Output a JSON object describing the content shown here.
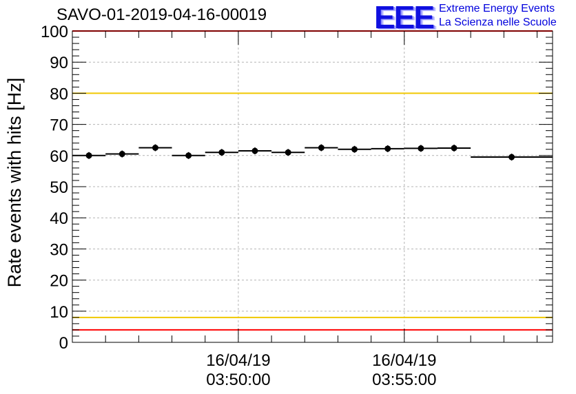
{
  "header": {
    "run_title": "SAVO-01-2019-04-16-00019",
    "logo_text": "EEE",
    "logo_line1": "Extreme Energy Events",
    "logo_line2": "La Scienza nelle Scuole"
  },
  "colors": {
    "red_limit": "#ff0000",
    "yellow_limit": "#f0c800",
    "marker": "#000000",
    "logo": "#1010e0"
  },
  "chart_data": {
    "type": "scatter",
    "title": "SAVO-01-2019-04-16-00019",
    "ylabel": "Rate events with hits [Hz]",
    "xlabel": "",
    "ylim": [
      0,
      100
    ],
    "yticks": [
      0,
      10,
      20,
      30,
      40,
      50,
      60,
      70,
      80,
      90,
      100
    ],
    "xlim_seconds": [
      0,
      868
    ],
    "xticks": [
      {
        "t": 300,
        "date": "16/04/19",
        "time": "03:50:00"
      },
      {
        "t": 600,
        "date": "16/04/19",
        "time": "03:55:00"
      }
    ],
    "grid": true,
    "reference_lines": [
      {
        "name": "red-upper",
        "value": 100,
        "color": "red"
      },
      {
        "name": "yellow-upper",
        "value": 80,
        "color": "yellow"
      },
      {
        "name": "yellow-lower",
        "value": 8,
        "color": "yellow"
      },
      {
        "name": "red-lower",
        "value": 4,
        "color": "red"
      }
    ],
    "series": [
      {
        "name": "rate",
        "points": [
          {
            "x_start": 0,
            "x_end": 60,
            "y": 60.0
          },
          {
            "x_start": 60,
            "x_end": 120,
            "y": 60.5
          },
          {
            "x_start": 120,
            "x_end": 180,
            "y": 62.5
          },
          {
            "x_start": 180,
            "x_end": 240,
            "y": 60.0
          },
          {
            "x_start": 240,
            "x_end": 300,
            "y": 61.0
          },
          {
            "x_start": 300,
            "x_end": 360,
            "y": 61.5
          },
          {
            "x_start": 360,
            "x_end": 420,
            "y": 61.0
          },
          {
            "x_start": 420,
            "x_end": 480,
            "y": 62.5
          },
          {
            "x_start": 480,
            "x_end": 540,
            "y": 62.0
          },
          {
            "x_start": 540,
            "x_end": 600,
            "y": 62.2
          },
          {
            "x_start": 600,
            "x_end": 660,
            "y": 62.3
          },
          {
            "x_start": 660,
            "x_end": 720,
            "y": 62.4
          },
          {
            "x_start": 720,
            "x_end": 868,
            "y": 59.5
          }
        ]
      }
    ]
  }
}
